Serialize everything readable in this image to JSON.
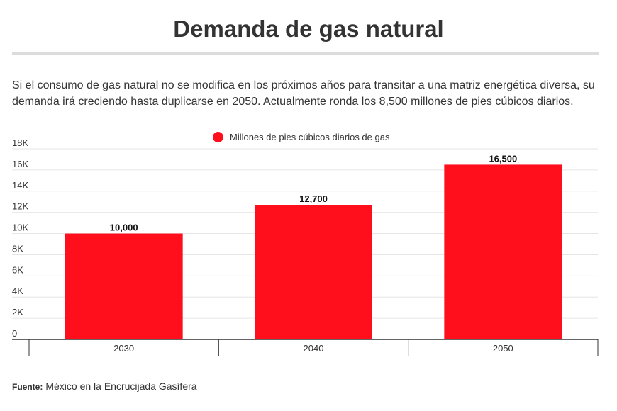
{
  "header": {
    "title": "Demanda de gas natural",
    "subtitle": "Si el consumo de gas natural no se modifica en los próximos años para transitar a una matriz energética diversa, su demanda irá creciendo hasta duplicarse en 2050. Actualmente ronda los 8,500 millones de pies cúbicos diarios."
  },
  "chart_data": {
    "type": "bar",
    "title": "Demanda de gas natural",
    "categories": [
      "2030",
      "2040",
      "2050"
    ],
    "series": [
      {
        "name": "Millones de pies cúbicos diarios de gas",
        "values": [
          10000,
          12700,
          16500
        ],
        "color": "#ff0f1b"
      }
    ],
    "data_labels": [
      "10,000",
      "12,700",
      "16,500"
    ],
    "y_ticks": [
      0,
      2000,
      4000,
      6000,
      8000,
      10000,
      12000,
      14000,
      16000,
      18000
    ],
    "y_tick_labels": [
      "0",
      "2K",
      "4K",
      "6K",
      "8K",
      "10K",
      "12K",
      "14K",
      "16K",
      "18K"
    ],
    "ylim": [
      0,
      18000
    ],
    "xlabel": "",
    "ylabel": "",
    "grid": true,
    "legend_position": "top-center"
  },
  "colors": {
    "bar": "#ff0f1b",
    "grid": "#e6e6e6",
    "axis": "#333333",
    "title_rule": "#dcdcdc"
  },
  "footer": {
    "source_label": "Fuente:",
    "source_text": "México en la Encrucijada Gasífera"
  }
}
